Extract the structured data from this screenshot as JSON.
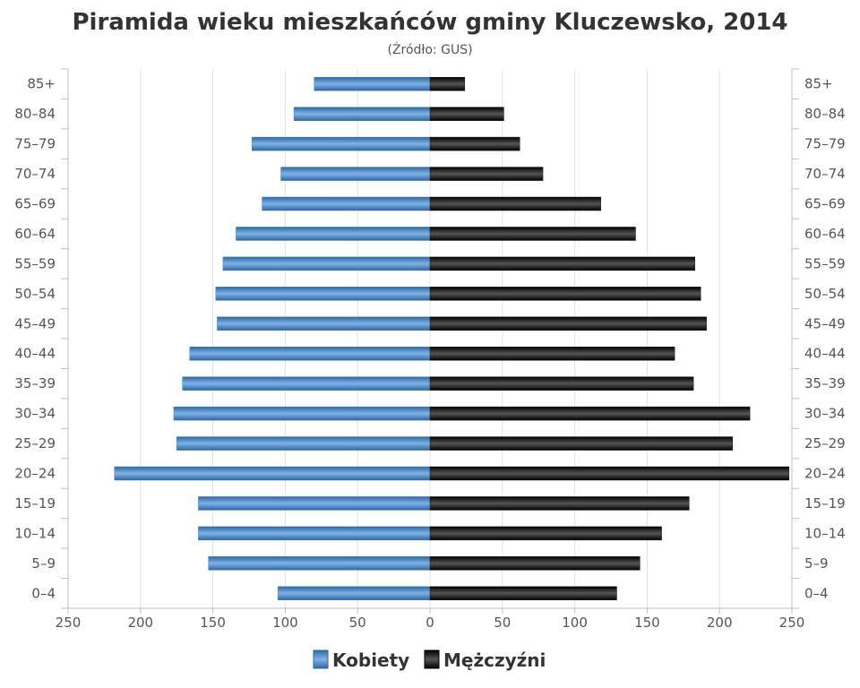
{
  "chart_data": {
    "type": "bar",
    "orientation": "horizontal-pyramid",
    "title": "Piramida wieku mieszkańców gminy Kluczewsko, 2014",
    "subtitle": "(Źródło: GUS)",
    "categories": [
      "0–4",
      "5–9",
      "10–14",
      "15–19",
      "20–24",
      "25–29",
      "30–34",
      "35–39",
      "40–44",
      "45–49",
      "50–54",
      "55–59",
      "60–64",
      "65–69",
      "70–74",
      "75–79",
      "80–84",
      "85+"
    ],
    "series": [
      {
        "name": "Kobiety",
        "side": "left",
        "values": [
          105,
          153,
          160,
          160,
          218,
          175,
          177,
          171,
          166,
          147,
          148,
          143,
          134,
          116,
          103,
          123,
          94,
          80
        ]
      },
      {
        "name": "Mężczyźni",
        "side": "right",
        "values": [
          129,
          145,
          160,
          179,
          248,
          209,
          221,
          182,
          169,
          191,
          187,
          183,
          142,
          118,
          78,
          62,
          51,
          24
        ]
      }
    ],
    "x_ticks": [
      "250",
      "200",
      "150",
      "100",
      "50",
      "0",
      "50",
      "100",
      "150",
      "200",
      "250"
    ],
    "xlim": [
      -250,
      250
    ],
    "grid": true,
    "legend_position": "bottom"
  },
  "colors": {
    "kobiety": "#3f7fc0",
    "mezczyzni": "#1a1a1a"
  }
}
